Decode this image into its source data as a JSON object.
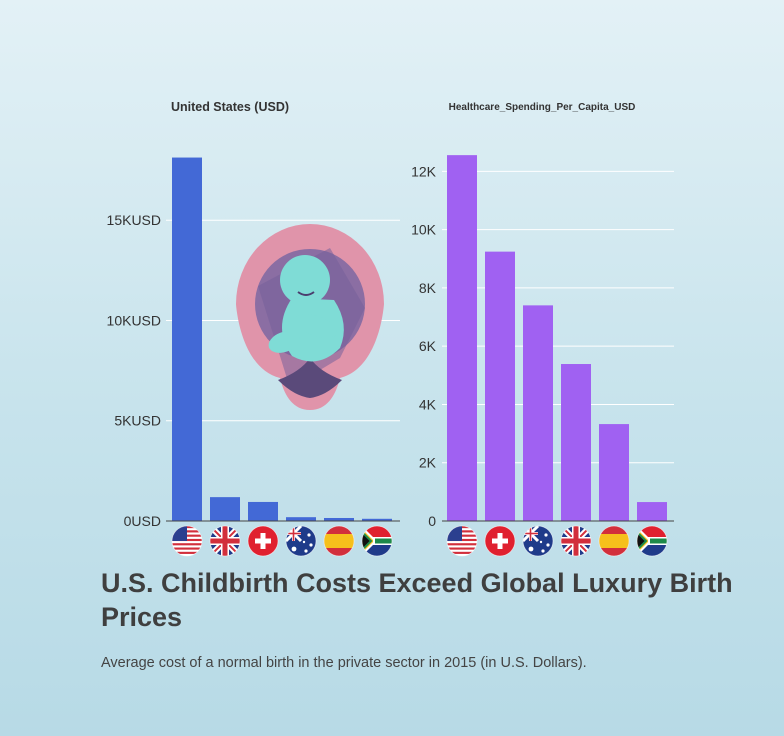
{
  "header": {
    "title": "U.S. Childbirth Costs Exceed Global Luxury Birth Prices",
    "subtitle": "Average cost of a normal birth in the private sector in 2015 (in U.S. Dollars)."
  },
  "colors": {
    "left_bars": "#4369d6",
    "right_bars": "#a061f2",
    "uterus": "#e094aa",
    "uterus_inner": "#8b6ea3",
    "fetus": "#7fdcd6"
  },
  "illustration": {
    "icon": "fetus-in-womb-icon"
  },
  "chart_data": [
    {
      "type": "bar",
      "title": "United States (USD)",
      "categories": [
        "United States",
        "United Kingdom",
        "Switzerland",
        "Australia",
        "Spain",
        "South Africa"
      ],
      "flags": [
        "us-flag-icon",
        "uk-flag-icon",
        "switzerland-flag-icon",
        "australia-flag-icon",
        "spain-flag-icon",
        "south-africa-flag-icon"
      ],
      "values": [
        18124,
        1190,
        950,
        190,
        150,
        110
      ],
      "ylim": [
        0,
        18600
      ],
      "yticks": [
        0,
        5000,
        10000,
        15000
      ],
      "ytick_labels": [
        "0USD",
        "5KUSD",
        "10KUSD",
        "15KUSD"
      ],
      "grid": true
    },
    {
      "type": "bar",
      "title": "Healthcare_Spending_Per_Capita_USD",
      "categories": [
        "United States",
        "Switzerland",
        "Australia",
        "United Kingdom",
        "Spain",
        "South Africa"
      ],
      "flags": [
        "us-flag-icon",
        "switzerland-flag-icon",
        "australia-flag-icon",
        "uk-flag-icon",
        "spain-flag-icon",
        "south-africa-flag-icon"
      ],
      "values": [
        12555,
        9244,
        7400,
        5387,
        3326,
        650
      ],
      "ylim": [
        0,
        12800
      ],
      "yticks": [
        0,
        2000,
        4000,
        6000,
        8000,
        10000,
        12000
      ],
      "ytick_labels": [
        "0",
        "2K",
        "4K",
        "6K",
        "8K",
        "10K",
        "12K"
      ],
      "grid": true
    }
  ]
}
